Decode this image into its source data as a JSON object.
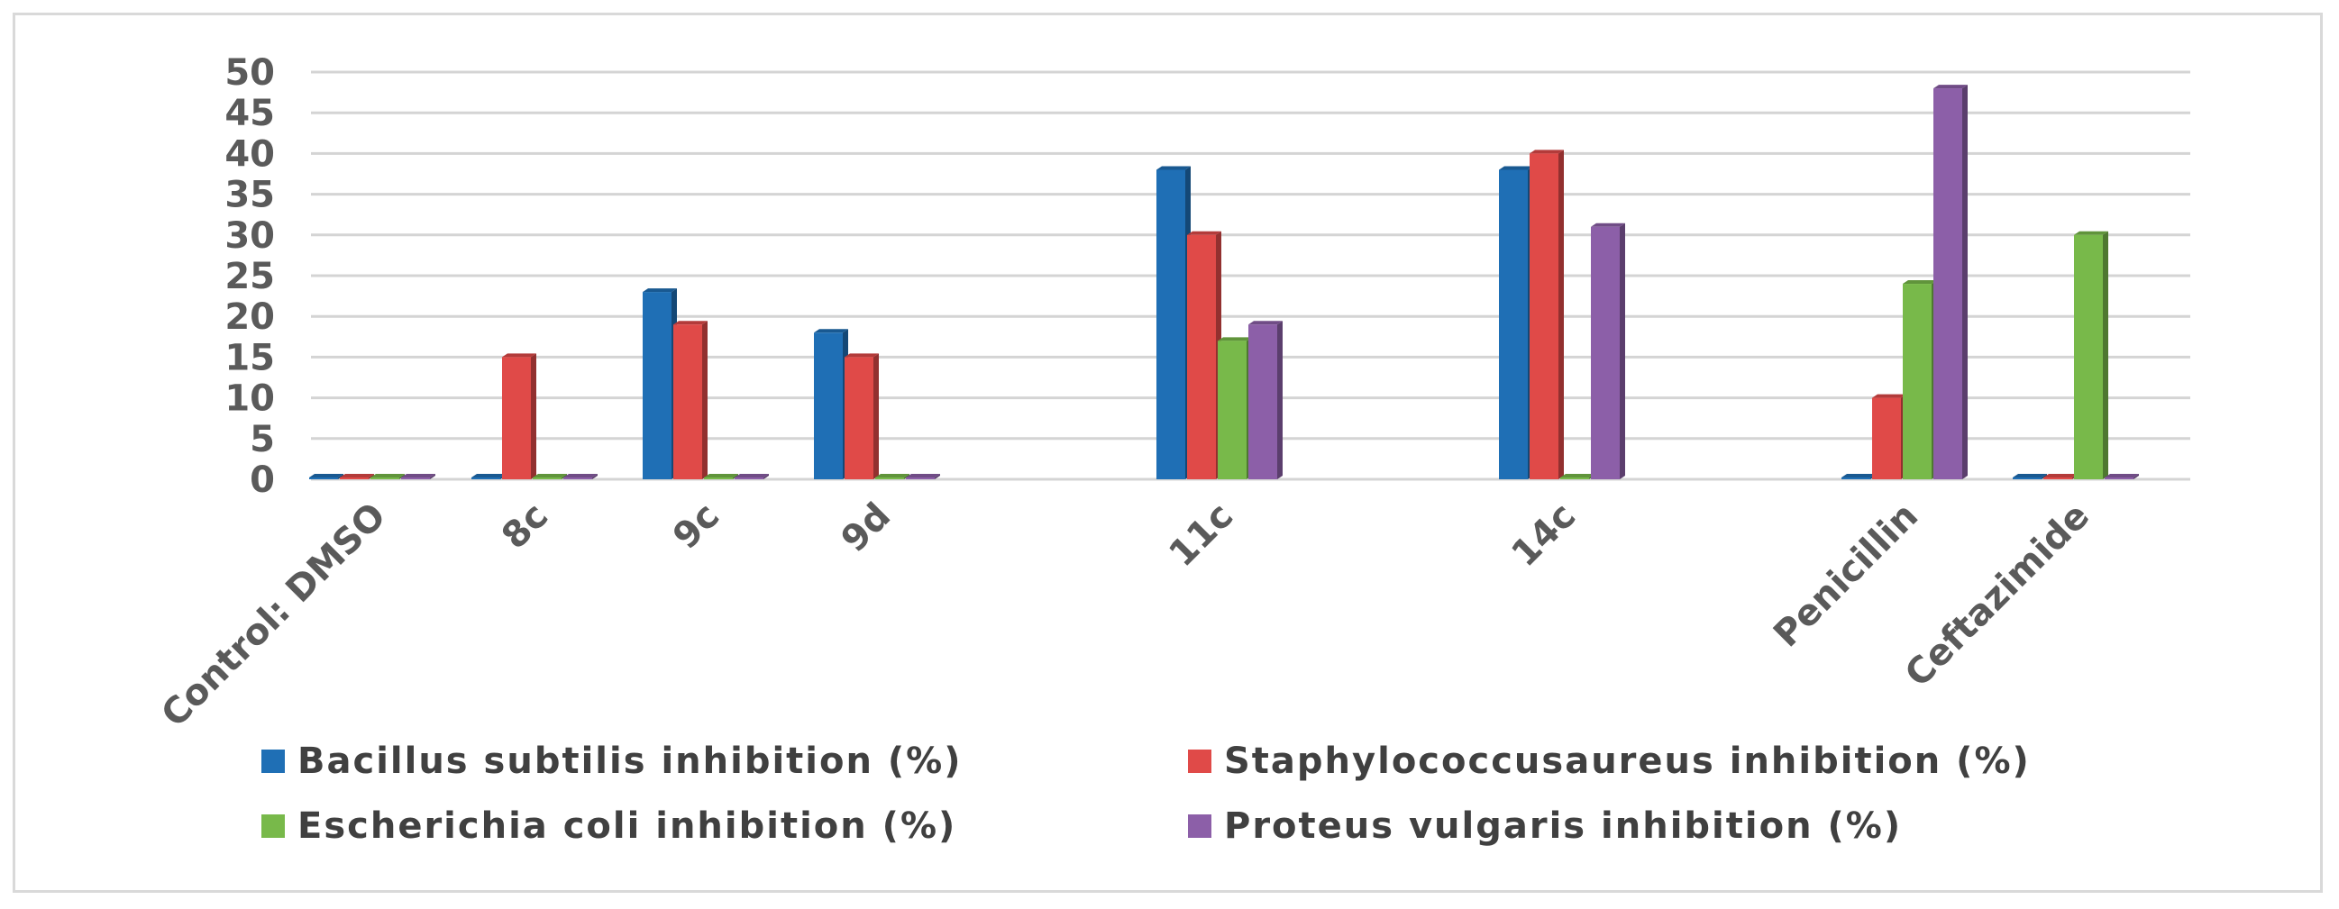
{
  "chart_data": {
    "type": "bar",
    "categories": [
      "Control: DMSO",
      "8c",
      "9c",
      "9d",
      "11c",
      "14c",
      "Penicillin",
      "Ceftazimide"
    ],
    "series": [
      {
        "name": "Bacillus subtilis inhibition (%)",
        "color": "#1f6fb5",
        "values": [
          0,
          0,
          23,
          18,
          38,
          38,
          0,
          0
        ]
      },
      {
        "name": "Staphylococcusaureus inhibition (%)",
        "color": "#e04a48",
        "values": [
          0,
          15,
          19,
          15,
          30,
          40,
          10,
          0
        ]
      },
      {
        "name": "Escherichia coli inhibition (%)",
        "color": "#78b94a",
        "values": [
          0,
          0,
          0,
          0,
          17,
          0,
          24,
          30
        ]
      },
      {
        "name": "Proteus vulgaris inhibition (%)",
        "color": "#8c5fa8",
        "values": [
          0,
          0,
          0,
          0,
          19,
          31,
          48,
          0
        ]
      }
    ],
    "ylim": [
      0,
      50
    ],
    "yticks": [
      "0",
      "5",
      "10",
      "15",
      "20",
      "25",
      "30",
      "35",
      "40",
      "45",
      "50"
    ],
    "grid": true,
    "legend": "bottom"
  }
}
